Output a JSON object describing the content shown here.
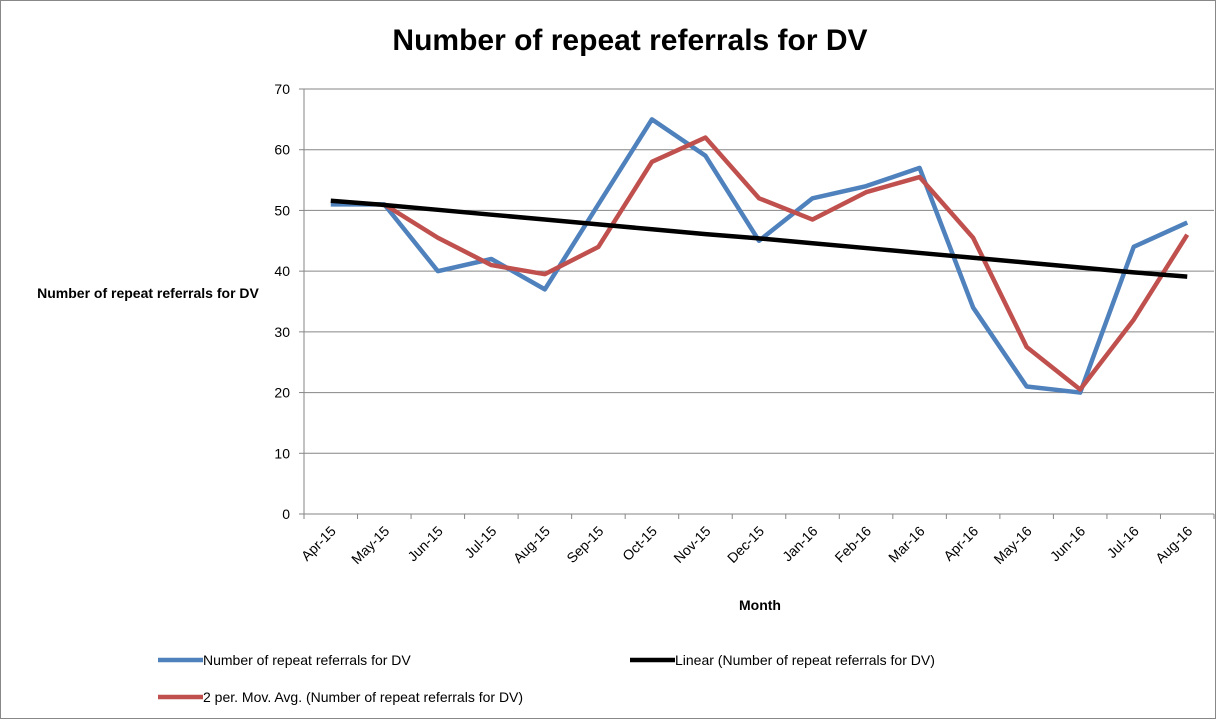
{
  "chart_data": {
    "type": "line",
    "title": "Number of repeat referrals for DV",
    "x_label": "Month",
    "y_label": "Number of repeat referrals for DV",
    "categories": [
      "Apr-15",
      "May-15",
      "Jun-15",
      "Jul-15",
      "Aug-15",
      "Sep-15",
      "Oct-15",
      "Nov-15",
      "Dec-15",
      "Jan-16",
      "Feb-16",
      "Mar-16",
      "Apr-16",
      "May-16",
      "Jun-16",
      "Jul-16",
      "Aug-16"
    ],
    "series": [
      {
        "name": "Number of repeat referrals for DV",
        "color": "#4f81bd",
        "values": [
          51,
          51,
          40,
          42,
          37,
          51,
          65,
          59,
          45,
          52,
          54,
          57,
          34,
          21,
          20,
          44,
          48
        ]
      },
      {
        "name": "Linear (Number of repeat referrals for DV)",
        "color": "#000000",
        "values": [
          51.6,
          50.9,
          50.1,
          49.3,
          48.5,
          47.7,
          46.9,
          46.1,
          45.4,
          44.6,
          43.8,
          43.0,
          42.2,
          41.4,
          40.6,
          39.8,
          39.1
        ]
      },
      {
        "name": "2 per. Mov. Avg. (Number of repeat referrals for DV)",
        "color": "#c0504d",
        "values": [
          null,
          51,
          45.5,
          41,
          39.5,
          44,
          58,
          62,
          52,
          48.5,
          53,
          55.5,
          45.5,
          27.5,
          20.5,
          32,
          46
        ]
      }
    ],
    "ylim": [
      0,
      70
    ],
    "yticks": [
      0,
      10,
      20,
      30,
      40,
      50,
      60,
      70
    ],
    "grid": true
  }
}
